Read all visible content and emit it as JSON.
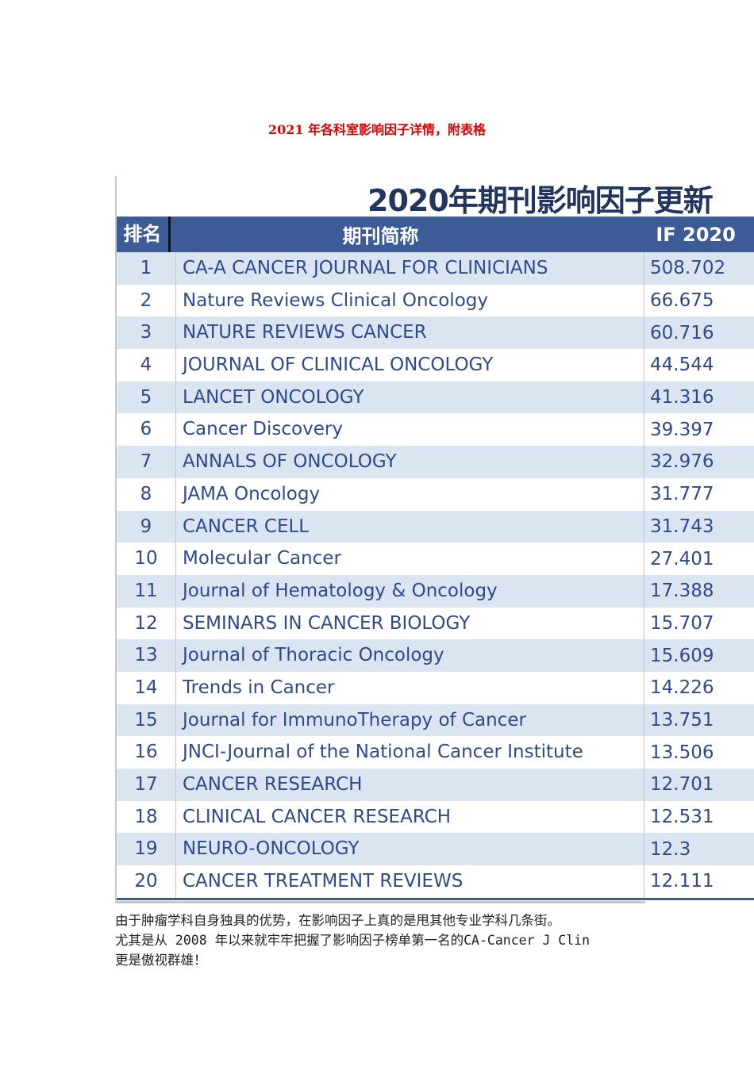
{
  "doc_title": "2021 年各科室影响因子详情，附表格",
  "table": {
    "title": "2020年期刊影响因子更新",
    "headers": {
      "rank": "排名",
      "name": "期刊简称",
      "if": "IF 2020"
    },
    "rows": [
      {
        "rank": "1",
        "name": "CA-A CANCER JOURNAL FOR CLINICIANS",
        "if": "508.702"
      },
      {
        "rank": "2",
        "name": "Nature Reviews Clinical Oncology",
        "if": "66.675"
      },
      {
        "rank": "3",
        "name": "NATURE REVIEWS CANCER",
        "if": "60.716"
      },
      {
        "rank": "4",
        "name": "JOURNAL OF CLINICAL ONCOLOGY",
        "if": "44.544"
      },
      {
        "rank": "5",
        "name": "LANCET ONCOLOGY",
        "if": "41.316"
      },
      {
        "rank": "6",
        "name": "Cancer Discovery",
        "if": "39.397"
      },
      {
        "rank": "7",
        "name": "ANNALS OF ONCOLOGY",
        "if": "32.976"
      },
      {
        "rank": "8",
        "name": "JAMA Oncology",
        "if": "31.777"
      },
      {
        "rank": "9",
        "name": "CANCER CELL",
        "if": "31.743"
      },
      {
        "rank": "10",
        "name": "Molecular Cancer",
        "if": "27.401"
      },
      {
        "rank": "11",
        "name": "Journal of Hematology & Oncology",
        "if": "17.388"
      },
      {
        "rank": "12",
        "name": "SEMINARS IN CANCER BIOLOGY",
        "if": "15.707"
      },
      {
        "rank": "13",
        "name": "Journal of Thoracic Oncology",
        "if": "15.609"
      },
      {
        "rank": "14",
        "name": "Trends in Cancer",
        "if": "14.226"
      },
      {
        "rank": "15",
        "name": "Journal for ImmunoTherapy of Cancer",
        "if": "13.751"
      },
      {
        "rank": "16",
        "name": "JNCI-Journal of the National Cancer Institute",
        "if": "13.506"
      },
      {
        "rank": "17",
        "name": "CANCER RESEARCH",
        "if": "12.701"
      },
      {
        "rank": "18",
        "name": "CLINICAL CANCER RESEARCH",
        "if": "12.531"
      },
      {
        "rank": "19",
        "name": "NEURO-ONCOLOGY",
        "if": "12.3"
      },
      {
        "rank": "20",
        "name": "CANCER TREATMENT REVIEWS",
        "if": "12.111"
      }
    ]
  },
  "paragraph": [
    "由于肿瘤学科自身独具的优势，在影响因子上真的是甩其他专业学科几条街。",
    "尤其是从 2008 年以来就牢牢把握了影响因子榜单第一名的CA-Cancer J Clin",
    "更是傲视群雄！"
  ]
}
